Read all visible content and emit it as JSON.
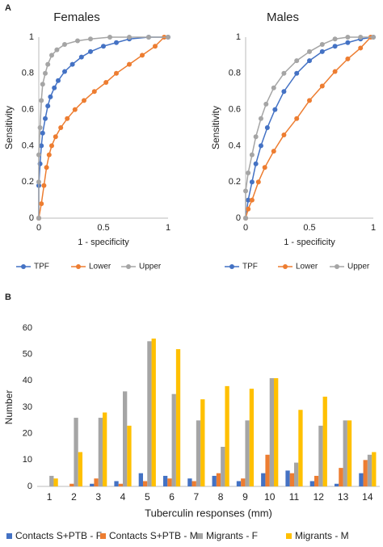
{
  "chart_data": [
    {
      "type": "line",
      "panel": "A",
      "title": "Females",
      "xlabel": "1 - specificity",
      "ylabel": "Sensitivity",
      "xlim": [
        0,
        1
      ],
      "xticks": [
        0,
        0.5,
        1
      ],
      "ylim": [
        0,
        1
      ],
      "yticks": [
        0,
        0.2,
        0.4,
        0.6,
        0.8,
        1
      ],
      "grid": false,
      "legend": "bottom",
      "series": [
        {
          "name": "TPF",
          "color": "#4472c4",
          "x": [
            0,
            0,
            0.01,
            0.02,
            0.03,
            0.05,
            0.07,
            0.09,
            0.12,
            0.15,
            0.2,
            0.26,
            0.33,
            0.4,
            0.5,
            0.6,
            0.7,
            0.85,
            1
          ],
          "values": [
            0,
            0.18,
            0.3,
            0.4,
            0.47,
            0.55,
            0.62,
            0.67,
            0.72,
            0.76,
            0.81,
            0.85,
            0.89,
            0.92,
            0.95,
            0.97,
            0.99,
            1,
            1
          ]
        },
        {
          "name": "Lower",
          "color": "#ed7d31",
          "x": [
            0,
            0.02,
            0.04,
            0.06,
            0.08,
            0.1,
            0.13,
            0.17,
            0.22,
            0.28,
            0.35,
            0.43,
            0.52,
            0.6,
            0.7,
            0.8,
            0.9,
            0.97
          ],
          "values": [
            0,
            0.08,
            0.18,
            0.28,
            0.35,
            0.4,
            0.45,
            0.5,
            0.55,
            0.6,
            0.65,
            0.7,
            0.75,
            0.8,
            0.85,
            0.9,
            0.95,
            1
          ]
        },
        {
          "name": "Upper",
          "color": "#a5a5a5",
          "x": [
            0,
            0,
            0,
            0.01,
            0.02,
            0.03,
            0.05,
            0.07,
            0.1,
            0.14,
            0.2,
            0.3,
            0.4,
            0.55,
            0.7,
            0.85,
            1
          ],
          "values": [
            0,
            0.2,
            0.35,
            0.5,
            0.65,
            0.74,
            0.8,
            0.85,
            0.9,
            0.93,
            0.96,
            0.98,
            0.99,
            1,
            1,
            1,
            1
          ]
        }
      ]
    },
    {
      "type": "line",
      "title": "Males",
      "xlabel": "1 - specificity",
      "ylabel": "Sensitivity",
      "xlim": [
        0,
        1
      ],
      "xticks": [
        0,
        0.5,
        1
      ],
      "ylim": [
        0,
        1
      ],
      "yticks": [
        0,
        0.2,
        0.4,
        0.6,
        0.8,
        1
      ],
      "grid": false,
      "legend": "bottom",
      "series": [
        {
          "name": "TPF",
          "color": "#4472c4",
          "x": [
            0,
            0.02,
            0.05,
            0.08,
            0.12,
            0.17,
            0.23,
            0.3,
            0.4,
            0.5,
            0.6,
            0.7,
            0.8,
            0.9,
            1
          ],
          "values": [
            0,
            0.1,
            0.2,
            0.3,
            0.4,
            0.5,
            0.6,
            0.7,
            0.8,
            0.87,
            0.92,
            0.95,
            0.97,
            0.99,
            1
          ]
        },
        {
          "name": "Lower",
          "color": "#ed7d31",
          "x": [
            0,
            0.02,
            0.05,
            0.1,
            0.15,
            0.22,
            0.3,
            0.4,
            0.5,
            0.6,
            0.7,
            0.8,
            0.9,
            0.98
          ],
          "values": [
            0,
            0.05,
            0.1,
            0.2,
            0.28,
            0.37,
            0.46,
            0.55,
            0.65,
            0.73,
            0.81,
            0.88,
            0.94,
            1
          ]
        },
        {
          "name": "Upper",
          "color": "#a5a5a5",
          "x": [
            0,
            0,
            0.02,
            0.05,
            0.08,
            0.12,
            0.16,
            0.22,
            0.3,
            0.4,
            0.5,
            0.6,
            0.7,
            0.8,
            0.9,
            1
          ],
          "values": [
            0,
            0.15,
            0.25,
            0.35,
            0.45,
            0.55,
            0.63,
            0.72,
            0.8,
            0.87,
            0.92,
            0.96,
            0.99,
            1,
            1,
            1
          ]
        }
      ]
    },
    {
      "type": "bar",
      "panel": "B",
      "xlabel": "Tuberculin responses (mm)",
      "ylabel": "Number",
      "ylim": [
        0,
        60
      ],
      "yticks": [
        0,
        10,
        20,
        30,
        40,
        50,
        60
      ],
      "grid": false,
      "legend": "bottom",
      "categories": [
        "1",
        "2",
        "3",
        "4",
        "5",
        "6",
        "7",
        "8",
        "9",
        "10",
        "11",
        "12",
        "13",
        "14"
      ],
      "series": [
        {
          "name": "Contacts S+PTB - F",
          "color": "#4472c4",
          "values": [
            0,
            0,
            1,
            2,
            5,
            4,
            3,
            4,
            2,
            5,
            6,
            2,
            1,
            5
          ]
        },
        {
          "name": "Contacts S+PTB - M",
          "color": "#ed7d31",
          "values": [
            0,
            1,
            3,
            1,
            2,
            3,
            2,
            5,
            3,
            12,
            5,
            4,
            7,
            10
          ]
        },
        {
          "name": "Migrants - F",
          "color": "#a5a5a5",
          "values": [
            4,
            26,
            26,
            36,
            55,
            35,
            25,
            15,
            25,
            41,
            9,
            23,
            25,
            12
          ]
        },
        {
          "name": "Migrants - M",
          "color": "#ffc000",
          "values": [
            3,
            13,
            28,
            23,
            56,
            52,
            33,
            38,
            37,
            41,
            29,
            34,
            25,
            13
          ]
        }
      ]
    }
  ]
}
